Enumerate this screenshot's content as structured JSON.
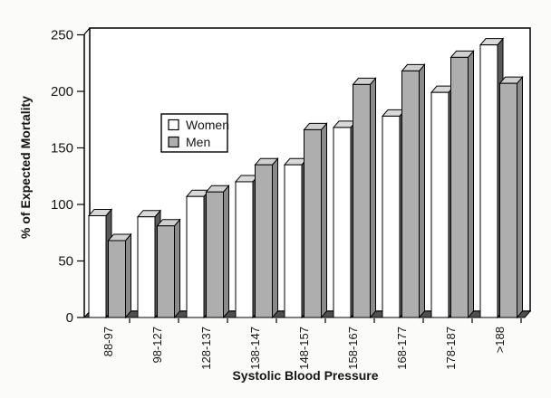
{
  "chart_data": {
    "type": "bar",
    "style": "3d-column",
    "title": "",
    "xlabel": "Systolic Blood Pressure",
    "ylabel": "% of Expected Mortality",
    "categories": [
      "88-97",
      "98-127",
      "128-137",
      "138-147",
      "148-157",
      "158-167",
      "168-177",
      "178-187",
      ">188"
    ],
    "series": [
      {
        "name": "Women",
        "values": [
          90,
          89,
          107,
          120,
          135,
          168,
          178,
          199,
          241
        ],
        "color": "#ffffff",
        "top_color": "#d9d9d9",
        "side_color": "#5a5a5a"
      },
      {
        "name": "Men",
        "values": [
          68,
          81,
          111,
          135,
          166,
          206,
          218,
          230,
          207
        ],
        "color": "#aeaeae",
        "top_color": "#d0d0d0",
        "side_color": "#8a8a8a"
      }
    ],
    "ylim": [
      0,
      250
    ],
    "yticks": [
      0,
      50,
      100,
      150,
      200,
      250
    ],
    "ytick_labels": [
      "0",
      "50",
      "100",
      "150",
      "200",
      "250"
    ],
    "grid": false,
    "legend_position": "upper-left-inside",
    "outline_color": "#000000",
    "wall_color": "#ffffff",
    "floor_color": "#4f4f4f"
  }
}
